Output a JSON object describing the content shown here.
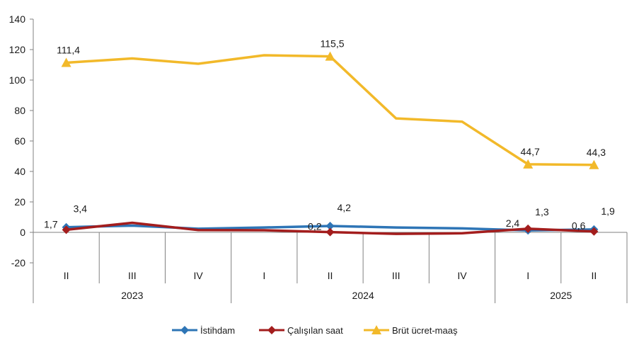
{
  "chart_data": {
    "type": "line",
    "title": "",
    "xlabel": "",
    "ylabel": "",
    "ylim": [
      -20,
      140
    ],
    "yticks": [
      -20,
      0,
      20,
      40,
      60,
      80,
      100,
      120,
      140
    ],
    "ytick_labels": [
      "-20",
      "0",
      "20",
      "40",
      "60",
      "80",
      "100",
      "120",
      "140"
    ],
    "categories": [
      "II",
      "III",
      "IV",
      "I",
      "II",
      "III",
      "IV",
      "I",
      "II"
    ],
    "years": [
      {
        "label": "2023",
        "start": 0,
        "end": 2
      },
      {
        "label": "2024",
        "start": 3,
        "end": 6
      },
      {
        "label": "2025",
        "start": 7,
        "end": 8
      }
    ],
    "grid": false,
    "legend_position": "bottom",
    "series": [
      {
        "name": "İstihdam",
        "color": "#2e75b6",
        "marker": "diamond",
        "values": [
          3.4,
          4.4,
          2.4,
          3.2,
          4.2,
          3.2,
          2.6,
          1.3,
          1.9
        ],
        "labels": [
          {
            "i": 0,
            "text": "3,4"
          },
          {
            "i": 4,
            "text": "4,2"
          },
          {
            "i": 7,
            "text": "1,3"
          },
          {
            "i": 8,
            "text": "1,9"
          }
        ]
      },
      {
        "name": "Çalışılan saat",
        "color": "#a31d1d",
        "marker": "diamond",
        "values": [
          1.7,
          6.3,
          1.5,
          1.4,
          0.2,
          -1.0,
          -0.6,
          2.4,
          0.6
        ],
        "labels": [
          {
            "i": 0,
            "text": "1,7"
          },
          {
            "i": 4,
            "text": "0,2"
          },
          {
            "i": 7,
            "text": "2,4"
          },
          {
            "i": 8,
            "text": "0,6"
          }
        ]
      },
      {
        "name": "Brüt ücret-maaş",
        "color": "#f2b92a",
        "marker": "triangle",
        "values": [
          111.4,
          114.2,
          110.7,
          116.3,
          115.5,
          74.8,
          72.7,
          44.7,
          44.3
        ],
        "labels": [
          {
            "i": 0,
            "text": "111,4"
          },
          {
            "i": 4,
            "text": "115,5"
          },
          {
            "i": 7,
            "text": "44,7"
          },
          {
            "i": 8,
            "text": "44,3"
          }
        ]
      }
    ]
  }
}
